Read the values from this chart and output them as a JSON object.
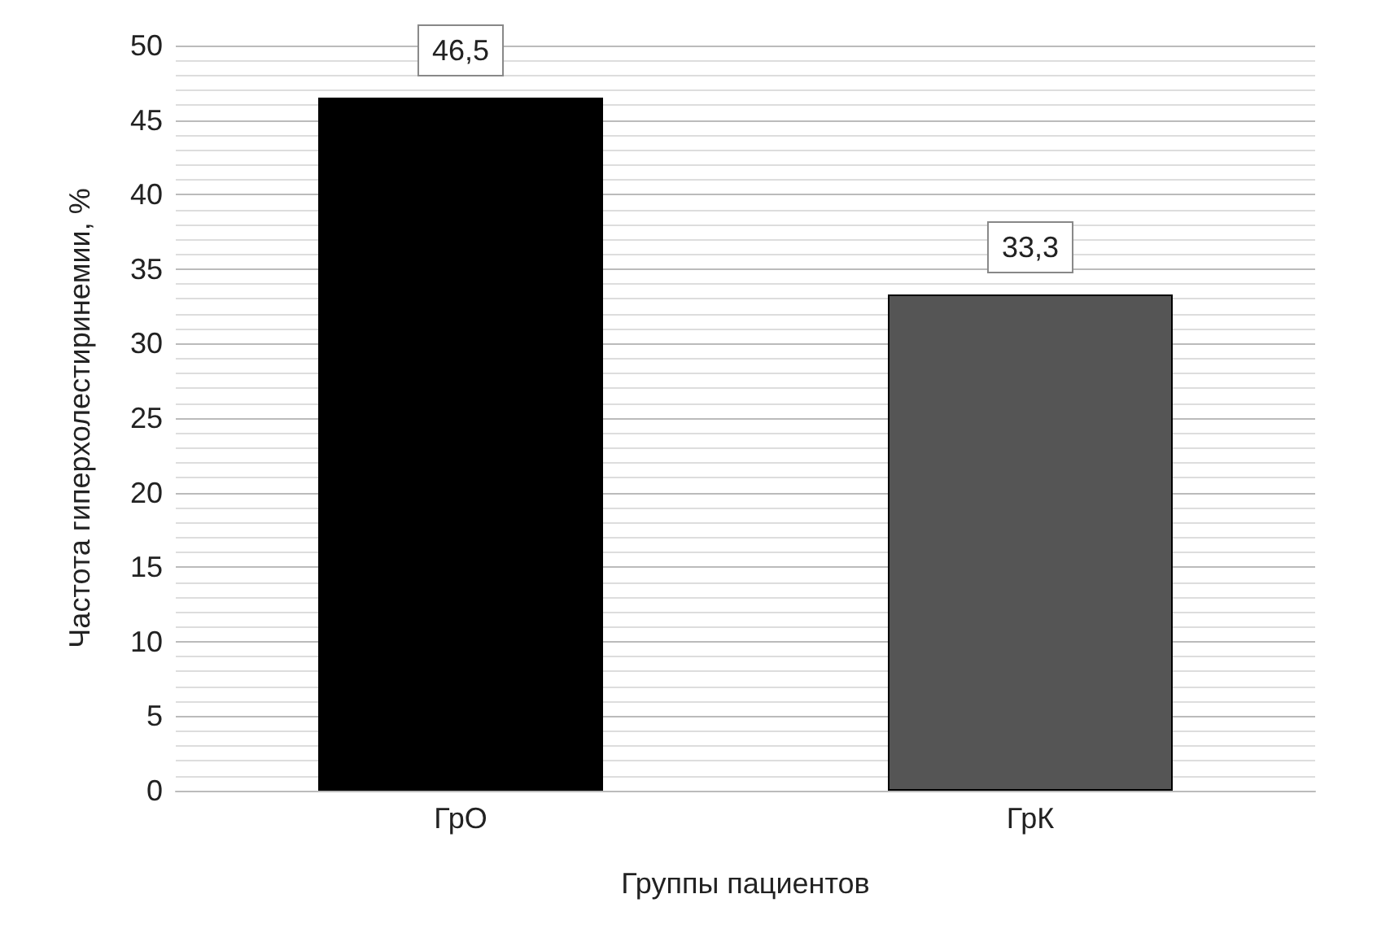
{
  "chart_data": {
    "type": "bar",
    "xlabel": "Группы пациентов",
    "ylabel": "Частота гиперхолестиринемии, %",
    "categories": [
      "ГрО",
      "ГрК"
    ],
    "values": [
      46.5,
      33.3
    ],
    "colors": [
      "#000000",
      "#555555"
    ],
    "value_labels": [
      "46,5",
      "33,3"
    ],
    "ylim": [
      0,
      50
    ],
    "yticks": [
      0,
      5,
      10,
      15,
      20,
      25,
      30,
      35,
      40,
      45,
      50
    ],
    "grid": "y"
  }
}
